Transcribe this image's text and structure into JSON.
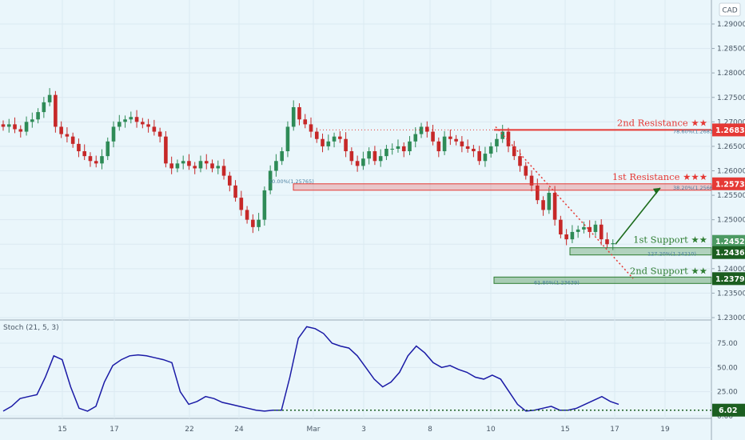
{
  "currency": "CAD",
  "stoch_label": "Stoch (21, 5, 3)",
  "colors": {
    "background": "#eaf6fb",
    "up_candle": "#2e8b57",
    "down_candle": "#c62828",
    "resistance": "#e53935",
    "support": "#2e7d32",
    "stoch_line": "#1a1aa6"
  },
  "chart_data": [
    {
      "type": "candlestick",
      "x_tick_labels": [
        "15",
        "17",
        "22",
        "24",
        "Mar",
        "3",
        "8",
        "10",
        "15",
        "17",
        "19"
      ],
      "y_tick_labels": [
        "1.29000",
        "1.28500",
        "1.28000",
        "1.27500",
        "1.27000",
        "1.26500",
        "1.26000",
        "1.25500",
        "1.25000",
        "1.24500",
        "1.24000",
        "1.23500",
        "1.23000"
      ],
      "ylim": [
        1.23,
        1.295
      ],
      "closes": [
        1.269,
        1.2695,
        1.2685,
        1.268,
        1.27,
        1.2705,
        1.272,
        1.274,
        1.2755,
        1.269,
        1.2675,
        1.267,
        1.2655,
        1.264,
        1.263,
        1.262,
        1.2615,
        1.263,
        1.266,
        1.269,
        1.27,
        1.2705,
        1.271,
        1.27,
        1.2695,
        1.269,
        1.268,
        1.267,
        1.2615,
        1.2605,
        1.2615,
        1.262,
        1.261,
        1.2605,
        1.262,
        1.2615,
        1.2605,
        1.261,
        1.259,
        1.257,
        1.2545,
        1.252,
        1.25,
        1.2485,
        1.25,
        1.256,
        1.26,
        1.262,
        1.264,
        1.269,
        1.273,
        1.2705,
        1.2695,
        1.268,
        1.2665,
        1.265,
        1.266,
        1.267,
        1.2665,
        1.264,
        1.262,
        1.261,
        1.2625,
        1.264,
        1.262,
        1.263,
        1.2645,
        1.2645,
        1.265,
        1.264,
        1.266,
        1.2675,
        1.269,
        1.268,
        1.266,
        1.264,
        1.267,
        1.2665,
        1.266,
        1.265,
        1.2645,
        1.264,
        1.262,
        1.2635,
        1.265,
        1.2665,
        1.268,
        1.265,
        1.263,
        1.261,
        1.259,
        1.257,
        1.254,
        1.252,
        1.2555,
        1.25,
        1.247,
        1.246,
        1.2475,
        1.248,
        1.2485,
        1.2475,
        1.249,
        1.246,
        1.245,
        1.2452
      ],
      "current_price": 1.24525,
      "levels": [
        {
          "label": "2nd Resistance ★★",
          "value": 1.26835,
          "fib": "78.60%(1.26833)"
        },
        {
          "label": "1st Resistance ★★★",
          "value": 1.25734,
          "fib": "38.20%(1.25664)"
        },
        {
          "label": "1st Support ★★",
          "value": 1.24362,
          "fib": "127.20%(1.24210)"
        },
        {
          "label": "2nd Support ★★",
          "value": 1.23796,
          "fib": "61.80%(1.23639)"
        }
      ],
      "extra_fib": "50.00%(1.25765)"
    },
    {
      "type": "line",
      "name": "Stoch (21, 5, 3)",
      "y_tick_labels": [
        "75.00",
        "50.00",
        "25.00",
        "0.00"
      ],
      "ylim": [
        0,
        100
      ],
      "values": [
        5,
        10,
        18,
        20,
        22,
        40,
        62,
        58,
        30,
        8,
        5,
        10,
        35,
        52,
        58,
        62,
        63,
        62,
        60,
        58,
        55,
        25,
        12,
        15,
        20,
        18,
        14,
        12,
        10,
        8,
        6,
        5,
        6,
        6,
        40,
        80,
        92,
        90,
        85,
        75,
        72,
        70,
        62,
        50,
        38,
        30,
        35,
        45,
        62,
        72,
        65,
        55,
        50,
        52,
        48,
        45,
        40,
        38,
        42,
        38,
        25,
        12,
        5,
        6,
        8,
        10,
        6,
        6,
        8,
        12,
        16,
        20,
        15,
        12
      ],
      "current_value": 6.02
    }
  ]
}
